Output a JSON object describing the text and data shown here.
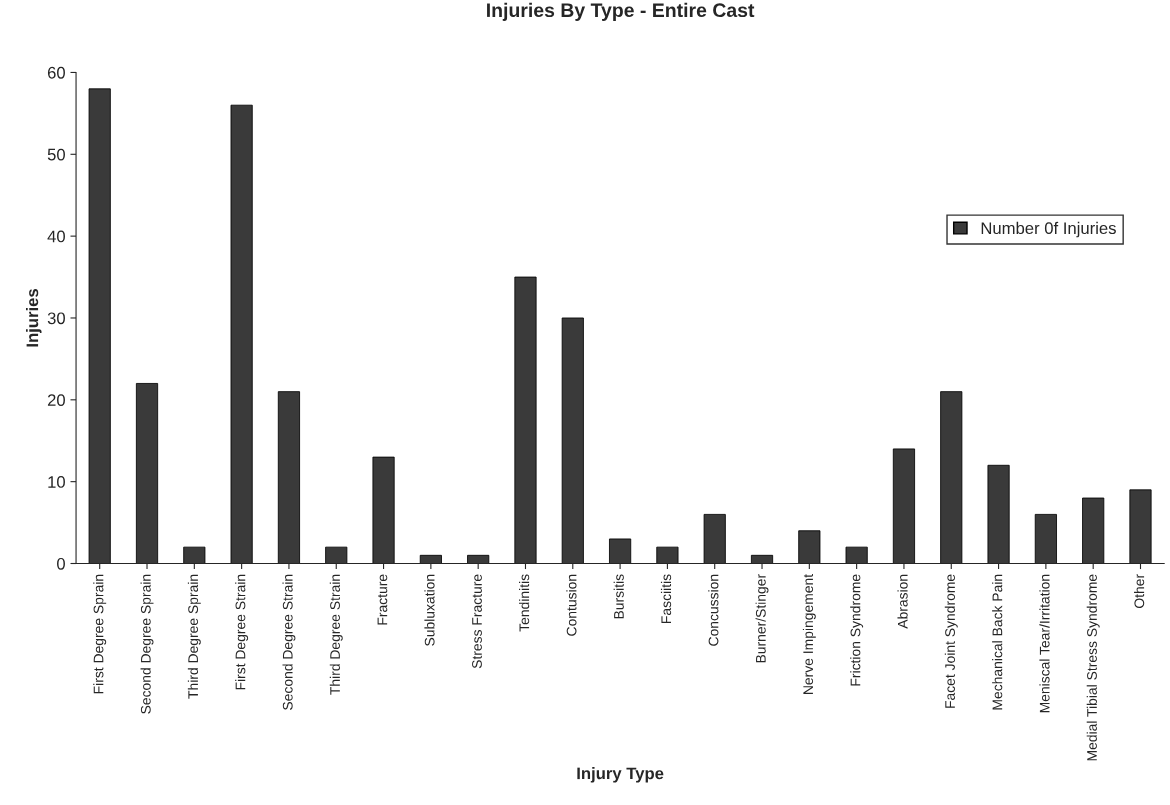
{
  "chart_data": {
    "type": "bar",
    "title": "Injuries By Type - Entire Cast",
    "xlabel": "Injury Type",
    "ylabel": "Injuries",
    "categories": [
      "First Degree Sprain",
      "Second Degree Sprain",
      "Third Degree Sprain",
      "First Degree Strain",
      "Second Degree Strain",
      "Third Degree Strain",
      "Fracture",
      "Subluxation",
      "Stress Fracture",
      "Tendinitis",
      "Contusion",
      "Bursitis",
      "Fasciitis",
      "Concussion",
      "Burner/Stinger",
      "Nerve Impingement",
      "Friction Syndrome",
      "Abrasion",
      "Facet Joint Syndrome",
      "Mechanical Back Pain",
      "Meniscal Tear/Irritation",
      "Medial Tibial Stress Syndrome",
      "Other"
    ],
    "series": [
      {
        "name": "Number 0f Injuries",
        "color": "#3a3a3a",
        "values": [
          58,
          22,
          2,
          56,
          21,
          2,
          13,
          1,
          1,
          35,
          30,
          3,
          2,
          6,
          1,
          4,
          2,
          14,
          21,
          12,
          6,
          8,
          9
        ]
      }
    ],
    "ylim": [
      0,
      60
    ],
    "yticks": [
      0,
      10,
      20,
      30,
      40,
      50,
      60
    ],
    "grid": false,
    "legend": "right"
  }
}
